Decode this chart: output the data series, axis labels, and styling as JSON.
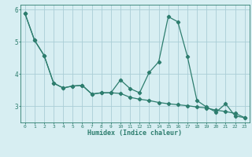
{
  "xlabel": "Humidex (Indice chaleur)",
  "background_color": "#d7eef2",
  "grid_color": "#aacdd6",
  "line_color": "#2d7d6e",
  "xlim": [
    -0.5,
    23.5
  ],
  "ylim": [
    2.5,
    6.15
  ],
  "yticks": [
    3,
    4,
    5,
    6
  ],
  "xticks": [
    0,
    1,
    2,
    3,
    4,
    5,
    6,
    7,
    8,
    9,
    10,
    11,
    12,
    13,
    14,
    15,
    16,
    17,
    18,
    19,
    20,
    21,
    22,
    23
  ],
  "line1_x": [
    0,
    1,
    2,
    3,
    4,
    5,
    6,
    7,
    8,
    9,
    10,
    11,
    12,
    13,
    14,
    15,
    16,
    17,
    18,
    19,
    20,
    21,
    22,
    23
  ],
  "line1_y": [
    5.88,
    5.05,
    4.58,
    3.72,
    3.57,
    3.63,
    3.65,
    3.38,
    3.42,
    3.42,
    3.82,
    3.55,
    3.42,
    4.05,
    4.38,
    5.78,
    5.62,
    4.55,
    3.18,
    2.98,
    2.82,
    3.08,
    2.7,
    2.65
  ],
  "line2_x": [
    0,
    1,
    2,
    3,
    4,
    5,
    6,
    7,
    8,
    9,
    10,
    11,
    12,
    13,
    14,
    15,
    16,
    17,
    18,
    19,
    20,
    21,
    22,
    23
  ],
  "line2_y": [
    5.88,
    5.05,
    4.58,
    3.72,
    3.57,
    3.63,
    3.65,
    3.38,
    3.42,
    3.42,
    3.4,
    3.28,
    3.22,
    3.18,
    3.12,
    3.08,
    3.05,
    3.02,
    2.98,
    2.95,
    2.88,
    2.84,
    2.78,
    2.65
  ]
}
